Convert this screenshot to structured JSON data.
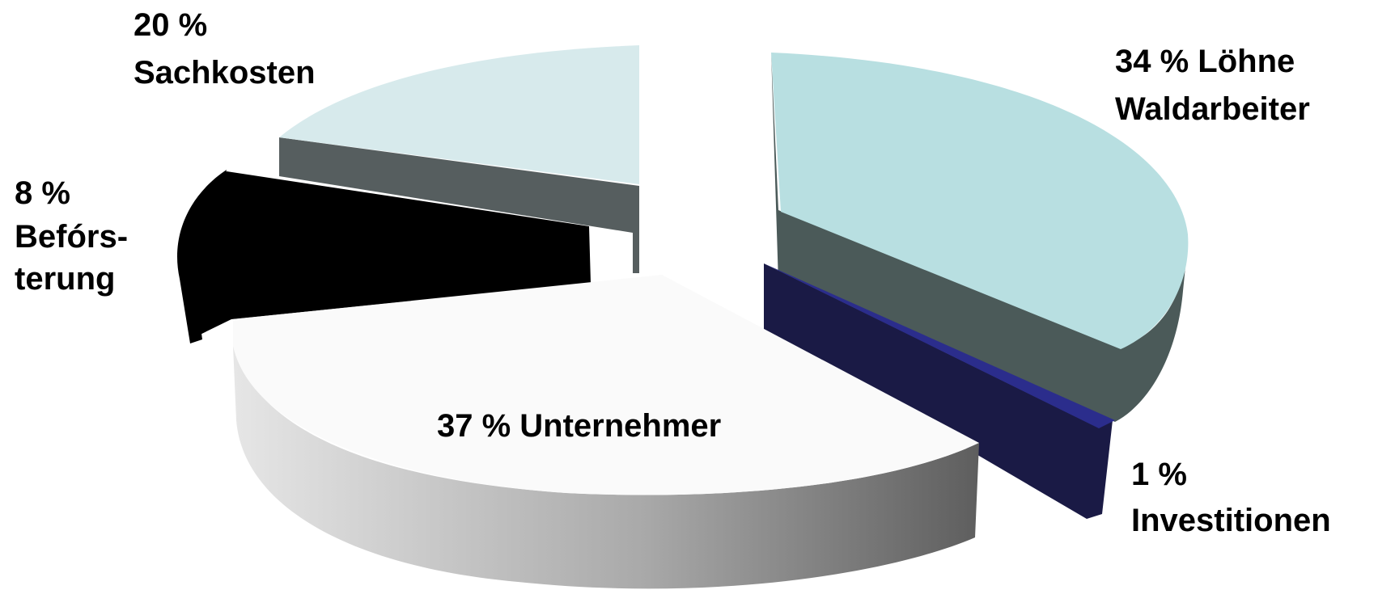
{
  "chart_data": {
    "type": "pie",
    "style": "3d-exploded",
    "title": "",
    "slices": [
      {
        "label": "Löhne Waldarbeiter",
        "value": 34,
        "color": "#b8dfe1",
        "side_color": "#4b5a59"
      },
      {
        "label": "Investitionen",
        "value": 1,
        "color": "#2b2d8c",
        "side_color": "#1a1a45"
      },
      {
        "label": "Unternehmer",
        "value": 37,
        "color": "#fafafa",
        "side_color": "#9a9a9a"
      },
      {
        "label": "Beförsterung",
        "value": 8,
        "color": "#000000",
        "side_color": "#000000"
      },
      {
        "label": "Sachkosten",
        "value": 20,
        "color": "#d7eaec",
        "side_color": "#565e5f"
      }
    ]
  },
  "labels": {
    "loehne": [
      "34 % Löhne",
      "Waldarbeiter"
    ],
    "investitionen": [
      "1 %",
      "Investitionen"
    ],
    "unternehmer": [
      "37 %  Unternehmer"
    ],
    "befoersterung": [
      "8 %",
      "Befórs-",
      "terung"
    ],
    "sachkosten": [
      "20 %",
      "Sachkosten"
    ]
  }
}
